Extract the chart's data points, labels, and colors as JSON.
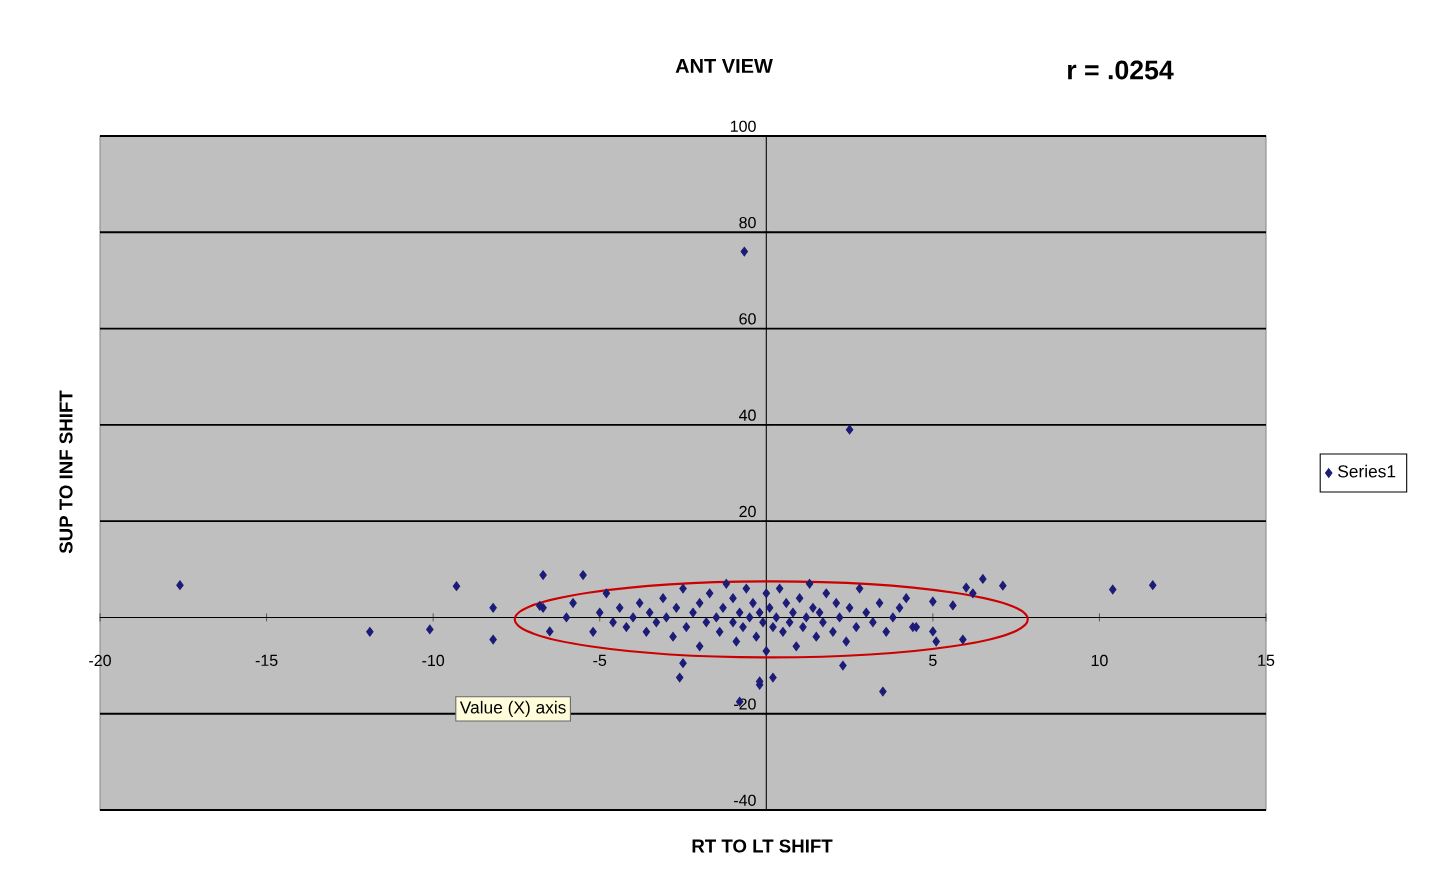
{
  "chart_data": {
    "type": "scatter",
    "title": "ANT VIEW",
    "xlabel": "RT TO LT SHIFT",
    "ylabel": "SUP TO INF SHIFT",
    "annotations": [
      "r = .0254",
      "Value (X) axis"
    ],
    "xlim": [
      -20,
      15
    ],
    "ylim": [
      -40,
      100
    ],
    "xticks": [
      -20,
      -15,
      -10,
      -5,
      5,
      10,
      15
    ],
    "yticks": [
      -40,
      -20,
      20,
      40,
      60,
      80,
      100
    ],
    "grid": "y",
    "legend": "right",
    "marker": "diamond",
    "series": [
      {
        "name": "Series1",
        "color": "#1c1c78",
        "x": [
          -0.66,
          2.5,
          -17.6,
          -11.9,
          -10.1,
          -9.3,
          -8.2,
          -8.2,
          -6.7,
          -5.5,
          -6.7,
          -6.5,
          -5.8,
          -2.6,
          -2.5,
          -0.8,
          -0.2,
          6.5,
          7.1,
          6.0,
          6.2,
          5.0,
          5.6,
          5.0,
          5.1,
          5.9,
          2.3,
          3.5,
          -0.2,
          0.2,
          4.0,
          4.5,
          10.4,
          11.6,
          -5.0,
          -4.6,
          -4.4,
          -4.2,
          -4.0,
          -3.8,
          -3.6,
          -3.5,
          -3.3,
          -3.1,
          -3.0,
          -2.8,
          -2.7,
          -2.5,
          -2.4,
          -2.2,
          -2.0,
          -2.0,
          -1.8,
          -1.7,
          -1.5,
          -1.4,
          -1.3,
          -1.2,
          -1.0,
          -1.0,
          -0.9,
          -0.8,
          -0.7,
          -0.6,
          -0.5,
          -0.4,
          -0.3,
          -0.2,
          -0.1,
          0.0,
          0.0,
          0.1,
          0.2,
          0.3,
          0.4,
          0.5,
          0.6,
          0.7,
          0.8,
          0.9,
          1.0,
          1.1,
          1.2,
          1.3,
          1.4,
          1.5,
          1.6,
          1.7,
          1.8,
          2.0,
          2.1,
          2.2,
          2.4,
          2.5,
          2.7,
          2.8,
          3.0,
          3.2,
          3.4,
          3.6,
          3.8,
          4.2,
          4.4,
          -5.2,
          -4.8,
          -6.0,
          -6.8
        ],
        "values": [
          76,
          39,
          6.7,
          -3,
          -2.5,
          6.5,
          2,
          -4.6,
          8.8,
          8.8,
          2,
          -2.9,
          3,
          -12.5,
          -9.5,
          -17.5,
          -14,
          8,
          6.6,
          6.2,
          5,
          3.3,
          2.5,
          -2.9,
          -5,
          -4.6,
          -10,
          -15.4,
          -13.3,
          -12.5,
          2,
          -2,
          5.8,
          6.7,
          1,
          -1,
          2,
          -2,
          0,
          3,
          -3,
          1,
          -1,
          4,
          0,
          -4,
          2,
          6,
          -2,
          1,
          -6,
          3,
          -1,
          5,
          0,
          -3,
          2,
          7,
          -1,
          4,
          -5,
          1,
          -2,
          6,
          0,
          3,
          -4,
          1,
          -1,
          5,
          -7,
          2,
          -2,
          0,
          6,
          -3,
          3,
          -1,
          1,
          -6,
          4,
          -2,
          0,
          7,
          2,
          -4,
          1,
          -1,
          5,
          -3,
          3,
          0,
          -5,
          2,
          -2,
          6,
          1,
          -1,
          3,
          -3,
          0,
          4,
          -2,
          -3,
          5,
          0,
          2.4
        ]
      }
    ]
  }
}
